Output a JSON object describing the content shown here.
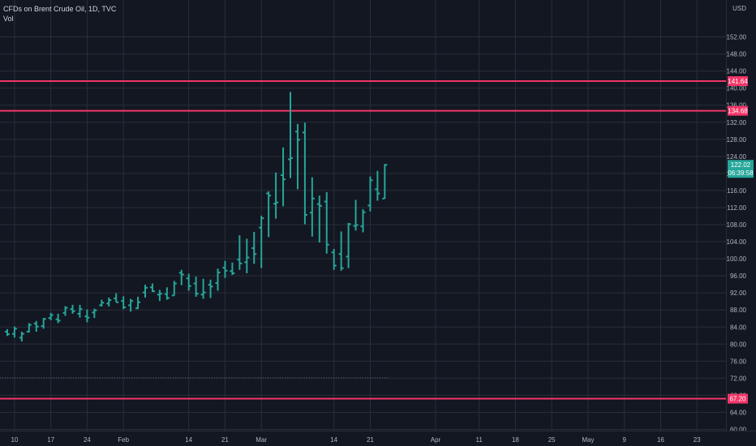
{
  "header": {
    "symbol_line": "CFDs on Brent Crude Oil, 1D, TVC",
    "volume_label": "Vol"
  },
  "colors": {
    "background": "#131722",
    "grid": "#2a2e39",
    "bar_up": "#26a69a",
    "level_line": "#f23668",
    "axis_text": "#b2b5be"
  },
  "chart_data": {
    "type": "ohlc",
    "currency": "USD",
    "ylim": [
      60,
      156
    ],
    "y_ticks": [
      "152.00",
      "148.00",
      "144.00",
      "140.00",
      "136.00",
      "132.00",
      "128.00",
      "124.00",
      "120.00",
      "116.00",
      "112.00",
      "108.00",
      "104.00",
      "100.00",
      "96.00",
      "92.00",
      "88.00",
      "84.00",
      "80.00",
      "76.00",
      "72.00",
      "68.00",
      "64.00",
      "60.00"
    ],
    "x_ticks": [
      {
        "label": "10",
        "i": 1
      },
      {
        "label": "17",
        "i": 6
      },
      {
        "label": "24",
        "i": 11
      },
      {
        "label": "Feb",
        "i": 16
      },
      {
        "label": "14",
        "i": 25
      },
      {
        "label": "21",
        "i": 30
      },
      {
        "label": "Mar",
        "i": 35
      },
      {
        "label": "14",
        "i": 45
      },
      {
        "label": "21",
        "i": 50
      },
      {
        "label": "Apr",
        "i": 59
      },
      {
        "label": "11",
        "i": 65
      },
      {
        "label": "18",
        "i": 70
      },
      {
        "label": "25",
        "i": 75
      },
      {
        "label": "May",
        "i": 80
      },
      {
        "label": "9",
        "i": 85
      },
      {
        "label": "16",
        "i": 90
      },
      {
        "label": "23",
        "i": 95
      }
    ],
    "x_range": [
      -1,
      99
    ],
    "bars": [
      [
        82.9,
        83.5,
        81.9,
        82.3
      ],
      [
        82.4,
        84.1,
        81.5,
        83.6
      ],
      [
        81.5,
        82.9,
        80.6,
        82.4
      ],
      [
        82.9,
        84.9,
        82.7,
        84.5
      ],
      [
        84.8,
        85.4,
        82.9,
        84.1
      ],
      [
        84.2,
        86.1,
        83.6,
        85.9
      ],
      [
        86.1,
        87.3,
        85.6,
        86.8
      ],
      [
        85.8,
        87.1,
        84.9,
        85.5
      ],
      [
        87.3,
        88.9,
        86.6,
        88.5
      ],
      [
        88.2,
        89.2,
        87.1,
        87.7
      ],
      [
        87.1,
        89.2,
        86.2,
        88.2
      ],
      [
        86.5,
        88.1,
        85.1,
        86.2
      ],
      [
        87.4,
        88.3,
        86.1,
        87.9
      ],
      [
        89.1,
        90.4,
        88.8,
        89.7
      ],
      [
        89.5,
        90.9,
        88.8,
        90.3
      ],
      [
        90.7,
        91.9,
        89.8,
        89.8
      ],
      [
        90.1,
        91.2,
        88.2,
        88.6
      ],
      [
        89.1,
        90.6,
        87.6,
        90.1
      ],
      [
        88.4,
        91.1,
        88.2,
        89.8
      ],
      [
        92.1,
        93.9,
        90.9,
        93.2
      ],
      [
        93.3,
        94.2,
        92.2,
        92.4
      ],
      [
        91.6,
        92.7,
        90.1,
        91.8
      ],
      [
        91.7,
        93.3,
        90.4,
        90.8
      ],
      [
        91.4,
        94.8,
        91.4,
        94.2
      ],
      [
        96.7,
        97.4,
        93.8,
        96.3
      ],
      [
        95.4,
        96.5,
        92.5,
        93.6
      ],
      [
        94.2,
        95.8,
        91.1,
        91.8
      ],
      [
        91.6,
        95.3,
        90.6,
        92.1
      ],
      [
        93.9,
        95.1,
        90.8,
        93.5
      ],
      [
        94.3,
        97.7,
        92.5,
        96.8
      ],
      [
        97.9,
        99.5,
        95.5,
        97.2
      ],
      [
        97.1,
        99.1,
        96.2,
        96.6
      ],
      [
        99.8,
        105.5,
        97.4,
        98.9
      ],
      [
        99.2,
        104.7,
        96.6,
        100.3
      ],
      [
        102.5,
        106.3,
        98.8,
        101.1
      ],
      [
        107.3,
        110.1,
        97.8,
        109.5
      ],
      [
        115.3,
        115.8,
        105.1,
        114.8
      ],
      [
        112.9,
        120.2,
        109.4,
        113.2
      ],
      [
        119.6,
        126.1,
        112.3,
        118.6
      ],
      [
        123.3,
        139.1,
        118.9,
        123.6
      ],
      [
        129.8,
        131.6,
        116.3,
        127.9
      ],
      [
        129.6,
        131.9,
        108.1,
        110.3
      ],
      [
        110.8,
        119.1,
        105.2,
        114.1
      ],
      [
        112.8,
        114.8,
        103.8,
        112.4
      ],
      [
        113.4,
        115.6,
        101.2,
        103.3
      ],
      [
        101.5,
        102.3,
        97.4,
        98.4
      ],
      [
        101.1,
        106.4,
        97.2,
        97.8
      ],
      [
        100.5,
        108.4,
        97.8,
        108.1
      ],
      [
        107.7,
        113.8,
        106.6,
        107.9
      ],
      [
        107.6,
        111.6,
        106.2,
        110.9
      ],
      [
        112.5,
        119.3,
        111.1,
        118.4
      ],
      [
        116.3,
        120.6,
        113.6,
        115.3
      ],
      [
        114.1,
        122.2,
        114.1,
        122.0
      ]
    ],
    "hlines": [
      {
        "value": 141.64,
        "label": "141.64"
      },
      {
        "value": 134.68,
        "label": "134.68"
      },
      {
        "value": 67.2,
        "label": "67.20"
      }
    ],
    "dotted_line_value": 72.1,
    "last_price": {
      "value": 122.02,
      "label": "122.02",
      "countdown": "06:39:58"
    }
  }
}
